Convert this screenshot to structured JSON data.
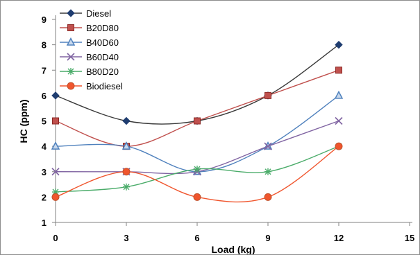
{
  "chart_data": {
    "type": "line",
    "xlabel": "Load (kg)",
    "ylabel": "HC (ppm)",
    "x": [
      0,
      3,
      6,
      9,
      12
    ],
    "xlim": [
      0,
      15
    ],
    "ylim": [
      1,
      9
    ],
    "x_ticks": [
      0,
      3,
      6,
      9,
      12,
      15
    ],
    "y_ticks": [
      1,
      2,
      3,
      4,
      5,
      6,
      7,
      8,
      9
    ],
    "grid": false,
    "legend_position": "top-left",
    "series": [
      {
        "name": "Diesel",
        "color": "#3a3a3a",
        "marker": "diamond",
        "values": [
          6,
          5,
          5,
          6,
          8
        ]
      },
      {
        "name": "B20D80",
        "color": "#c0504d",
        "marker": "square",
        "values": [
          5,
          4,
          5,
          6,
          7
        ]
      },
      {
        "name": "B40D60",
        "color": "#4f81bd",
        "marker": "triangle",
        "values": [
          4,
          4,
          3,
          4,
          6
        ]
      },
      {
        "name": "B60D40",
        "color": "#8064a2",
        "marker": "x",
        "values": [
          3,
          3,
          3,
          4,
          5
        ]
      },
      {
        "name": "B80D20",
        "color": "#4bac6a",
        "marker": "star",
        "values": [
          2.2,
          2.4,
          3.1,
          3,
          4
        ]
      },
      {
        "name": "Biodiesel",
        "color": "#f0552d",
        "marker": "circle",
        "values": [
          2,
          3,
          2,
          2,
          4
        ]
      }
    ]
  }
}
